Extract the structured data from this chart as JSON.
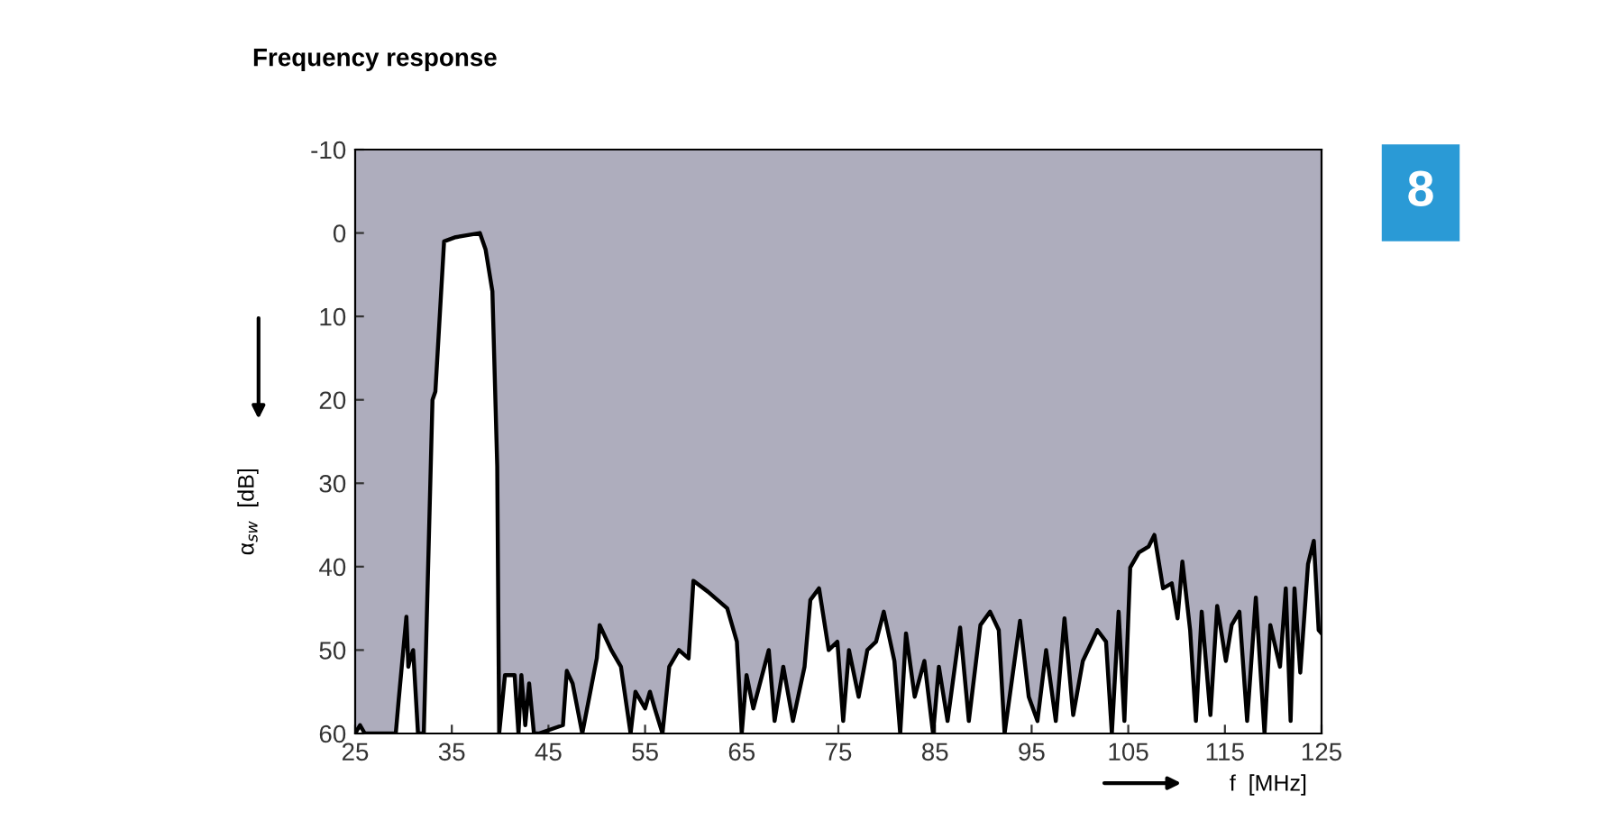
{
  "chart_data": {
    "type": "area",
    "title": "Frequency response",
    "xlabel": "f  [MHz]",
    "ylabel": "α$_{sw}$  [dB]",
    "annotations": [
      "8"
    ],
    "xlim": [
      25,
      125
    ],
    "xticks": [
      25,
      35,
      45,
      55,
      65,
      75,
      85,
      95,
      105,
      115,
      125
    ],
    "ylim": [
      60,
      -10
    ],
    "yticks": [
      -10,
      0,
      10,
      20,
      30,
      40,
      50,
      60
    ],
    "grid": false,
    "legend": false,
    "series": [
      {
        "color": "#ffffff",
        "x": [
          25,
          25.5,
          26,
          29.2,
          29.5,
          30.3,
          30.5,
          30.7,
          31,
          31.5,
          32.1,
          33,
          33.3,
          34.2,
          35.4,
          37.9,
          38.5,
          39.2,
          39.7,
          39.9,
          40.5,
          41.5,
          41.9,
          42.2,
          42.6,
          43,
          43.5,
          44,
          46.5,
          46.9,
          47.5,
          48.5,
          49,
          50,
          50.3,
          51.5,
          52.5,
          53.5,
          54,
          55,
          55.5,
          56,
          56.8,
          57.5,
          58.5,
          59.5,
          60,
          61.5,
          62.5,
          63.5,
          64.5,
          65,
          65.5,
          66.2,
          67.8,
          68.4,
          69.3,
          70.3,
          71.5,
          72.1,
          73,
          74,
          74.9,
          75.5,
          76.1,
          77.1,
          78,
          78.9,
          79.7,
          80.8,
          81.4,
          82,
          82.9,
          83.9,
          84.8,
          85.4,
          86.3,
          87.6,
          88.5,
          89.7,
          90.7,
          91.6,
          92.2,
          93.8,
          94.7,
          95.6,
          96.5,
          97.5,
          98.4,
          99.3,
          100.3,
          101.8,
          102.7,
          103.3,
          104,
          104.6,
          105.2,
          106.1,
          107.1,
          107.7,
          108.6,
          109.5,
          110.1,
          110.6,
          111.4,
          112,
          112.6,
          113.5,
          114.2,
          115.1,
          115.7,
          116.5,
          117.3,
          118.2,
          119.1,
          119.7,
          120.7,
          121.3,
          121.8,
          122.2,
          122.8,
          123.6,
          124.2,
          124.7,
          125
        ],
        "values": [
          60,
          59,
          60,
          60,
          56,
          46,
          52,
          51,
          50,
          60,
          60,
          20,
          19,
          1,
          0.5,
          0,
          2,
          7,
          28,
          60,
          53,
          53,
          60,
          53,
          59,
          54,
          60,
          60,
          59,
          52.5,
          54,
          60,
          57,
          51,
          47,
          50,
          52,
          60,
          55,
          57,
          55,
          57,
          60,
          52,
          50,
          51,
          41.7,
          43,
          44,
          45,
          49,
          60,
          53,
          57,
          50,
          58.5,
          52,
          58.5,
          52,
          44,
          42.6,
          50,
          49,
          58.5,
          50,
          55.6,
          50,
          49,
          45.4,
          51.3,
          60,
          48,
          55.6,
          51.3,
          60,
          52,
          58.5,
          47.3,
          58.5,
          47,
          45.4,
          47.6,
          60,
          46.5,
          55.6,
          58.5,
          50,
          58.5,
          46.2,
          57.8,
          51.3,
          47.6,
          49,
          60,
          45.4,
          58.5,
          40.1,
          38.3,
          37.6,
          36.2,
          42.6,
          42,
          46.2,
          39.4,
          47.6,
          58.5,
          45.4,
          57.8,
          44.7,
          51.3,
          47,
          45.4,
          58.5,
          43.7,
          60,
          47,
          52,
          42.6,
          58.5,
          42.6,
          52.7,
          39.7,
          36.9,
          47.6,
          48
        ]
      }
    ]
  }
}
